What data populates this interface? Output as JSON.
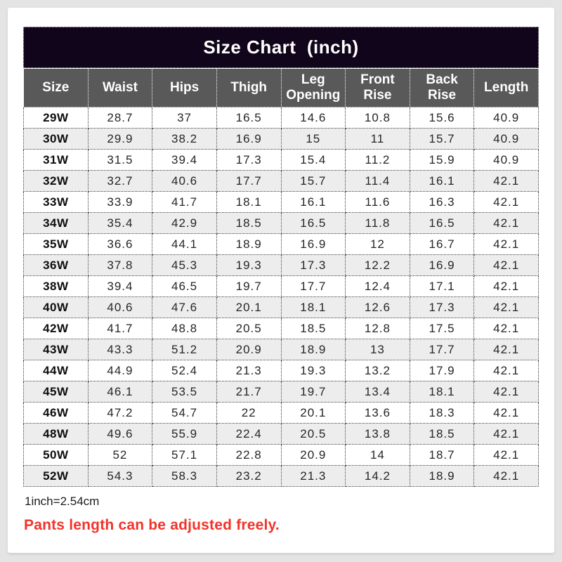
{
  "header": {
    "title": "Size Chart  (inch)"
  },
  "chart_data": {
    "type": "table",
    "title": "Size Chart (inch)",
    "columns": [
      "Size",
      "Waist",
      "Hips",
      "Thigh",
      "Leg Opening",
      "Front Rise",
      "Back Rise",
      "Length"
    ],
    "rows": [
      [
        "29W",
        "28.7",
        "37",
        "16.5",
        "14.6",
        "10.8",
        "15.6",
        "40.9"
      ],
      [
        "30W",
        "29.9",
        "38.2",
        "16.9",
        "15",
        "11",
        "15.7",
        "40.9"
      ],
      [
        "31W",
        "31.5",
        "39.4",
        "17.3",
        "15.4",
        "11.2",
        "15.9",
        "40.9"
      ],
      [
        "32W",
        "32.7",
        "40.6",
        "17.7",
        "15.7",
        "11.4",
        "16.1",
        "42.1"
      ],
      [
        "33W",
        "33.9",
        "41.7",
        "18.1",
        "16.1",
        "11.6",
        "16.3",
        "42.1"
      ],
      [
        "34W",
        "35.4",
        "42.9",
        "18.5",
        "16.5",
        "11.8",
        "16.5",
        "42.1"
      ],
      [
        "35W",
        "36.6",
        "44.1",
        "18.9",
        "16.9",
        "12",
        "16.7",
        "42.1"
      ],
      [
        "36W",
        "37.8",
        "45.3",
        "19.3",
        "17.3",
        "12.2",
        "16.9",
        "42.1"
      ],
      [
        "38W",
        "39.4",
        "46.5",
        "19.7",
        "17.7",
        "12.4",
        "17.1",
        "42.1"
      ],
      [
        "40W",
        "40.6",
        "47.6",
        "20.1",
        "18.1",
        "12.6",
        "17.3",
        "42.1"
      ],
      [
        "42W",
        "41.7",
        "48.8",
        "20.5",
        "18.5",
        "12.8",
        "17.5",
        "42.1"
      ],
      [
        "43W",
        "43.3",
        "51.2",
        "20.9",
        "18.9",
        "13",
        "17.7",
        "42.1"
      ],
      [
        "44W",
        "44.9",
        "52.4",
        "21.3",
        "19.3",
        "13.2",
        "17.9",
        "42.1"
      ],
      [
        "45W",
        "46.1",
        "53.5",
        "21.7",
        "19.7",
        "13.4",
        "18.1",
        "42.1"
      ],
      [
        "46W",
        "47.2",
        "54.7",
        "22",
        "20.1",
        "13.6",
        "18.3",
        "42.1"
      ],
      [
        "48W",
        "49.6",
        "55.9",
        "22.4",
        "20.5",
        "13.8",
        "18.5",
        "42.1"
      ],
      [
        "50W",
        "52",
        "57.1",
        "22.8",
        "20.9",
        "14",
        "18.7",
        "42.1"
      ],
      [
        "52W",
        "54.3",
        "58.3",
        "23.2",
        "21.3",
        "14.2",
        "18.9",
        "42.1"
      ]
    ],
    "annotations": [
      "1inch=2.54cm",
      "Pants length can be adjusted freely."
    ]
  },
  "footnotes": {
    "unit": "1inch=2.54cm",
    "adjust": "Pants length can be adjusted freely."
  },
  "colors": {
    "page_bg": "#e4e4e4",
    "card_bg": "#ffffff",
    "title_bar_bg": "#10051a",
    "header_bg": "#595959",
    "row_alt_bg": "#ededed",
    "body_text": "#262626",
    "note_red": "#f3332a"
  }
}
